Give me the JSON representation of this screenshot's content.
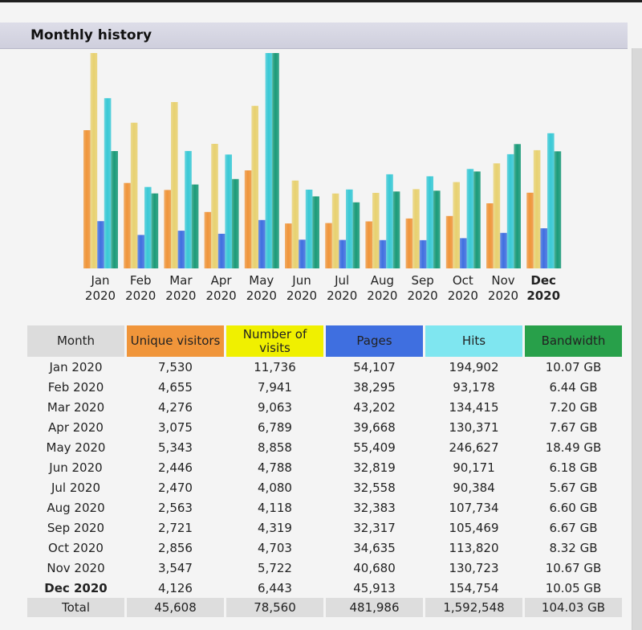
{
  "header": {
    "title": "Monthly history"
  },
  "colors": {
    "unique": "#f0953a",
    "visits": "#e8d170",
    "pages": "#3f6fe0",
    "hits": "#39c9d6",
    "bandwidth": "#1a9a78"
  },
  "table": {
    "headers": {
      "month": "Month",
      "unique": "Unique visitors",
      "visits": "Number of visits",
      "pages": "Pages",
      "hits": "Hits",
      "bandwidth": "Bandwidth"
    },
    "rows": [
      {
        "month": "Jan 2020",
        "unique": "7,530",
        "visits": "11,736",
        "pages": "54,107",
        "hits": "194,902",
        "bandwidth": "10.07 GB"
      },
      {
        "month": "Feb 2020",
        "unique": "4,655",
        "visits": "7,941",
        "pages": "38,295",
        "hits": "93,178",
        "bandwidth": "6.44 GB"
      },
      {
        "month": "Mar 2020",
        "unique": "4,276",
        "visits": "9,063",
        "pages": "43,202",
        "hits": "134,415",
        "bandwidth": "7.20 GB"
      },
      {
        "month": "Apr 2020",
        "unique": "3,075",
        "visits": "6,789",
        "pages": "39,668",
        "hits": "130,371",
        "bandwidth": "7.67 GB"
      },
      {
        "month": "May 2020",
        "unique": "5,343",
        "visits": "8,858",
        "pages": "55,409",
        "hits": "246,627",
        "bandwidth": "18.49 GB"
      },
      {
        "month": "Jun 2020",
        "unique": "2,446",
        "visits": "4,788",
        "pages": "32,819",
        "hits": "90,171",
        "bandwidth": "6.18 GB"
      },
      {
        "month": "Jul 2020",
        "unique": "2,470",
        "visits": "4,080",
        "pages": "32,558",
        "hits": "90,384",
        "bandwidth": "5.67 GB"
      },
      {
        "month": "Aug 2020",
        "unique": "2,563",
        "visits": "4,118",
        "pages": "32,383",
        "hits": "107,734",
        "bandwidth": "6.60 GB"
      },
      {
        "month": "Sep 2020",
        "unique": "2,721",
        "visits": "4,319",
        "pages": "32,317",
        "hits": "105,469",
        "bandwidth": "6.67 GB"
      },
      {
        "month": "Oct 2020",
        "unique": "2,856",
        "visits": "4,703",
        "pages": "34,635",
        "hits": "113,820",
        "bandwidth": "8.32 GB"
      },
      {
        "month": "Nov 2020",
        "unique": "3,547",
        "visits": "5,722",
        "pages": "40,680",
        "hits": "130,723",
        "bandwidth": "10.67 GB"
      },
      {
        "month": "Dec 2020",
        "unique": "4,126",
        "visits": "6,443",
        "pages": "45,913",
        "hits": "154,754",
        "bandwidth": "10.05 GB"
      }
    ],
    "total": {
      "month": "Total",
      "unique": "45,608",
      "visits": "78,560",
      "pages": "481,986",
      "hits": "1,592,548",
      "bandwidth": "104.03 GB"
    }
  },
  "chart_data": {
    "type": "bar",
    "title": "Monthly history",
    "categories": [
      "Jan 2020",
      "Feb 2020",
      "Mar 2020",
      "Apr 2020",
      "May 2020",
      "Jun 2020",
      "Jul 2020",
      "Aug 2020",
      "Sep 2020",
      "Oct 2020",
      "Nov 2020",
      "Dec 2020"
    ],
    "tick_labels": [
      {
        "month": "Jan",
        "year": "2020"
      },
      {
        "month": "Feb",
        "year": "2020"
      },
      {
        "month": "Mar",
        "year": "2020"
      },
      {
        "month": "Apr",
        "year": "2020"
      },
      {
        "month": "May",
        "year": "2020"
      },
      {
        "month": "Jun",
        "year": "2020"
      },
      {
        "month": "Jul",
        "year": "2020"
      },
      {
        "month": "Aug",
        "year": "2020"
      },
      {
        "month": "Sep",
        "year": "2020"
      },
      {
        "month": "Oct",
        "year": "2020"
      },
      {
        "month": "Nov",
        "year": "2020"
      },
      {
        "month": "Dec",
        "year": "2020"
      }
    ],
    "highlight_index": 11,
    "series": [
      {
        "name": "Unique visitors",
        "key": "unique",
        "values": [
          7530,
          4655,
          4276,
          3075,
          5343,
          2446,
          2470,
          2563,
          2721,
          2856,
          3547,
          4126
        ]
      },
      {
        "name": "Number of visits",
        "key": "visits",
        "values": [
          11736,
          7941,
          9063,
          6789,
          8858,
          4788,
          4080,
          4118,
          4319,
          4703,
          5722,
          6443
        ]
      },
      {
        "name": "Pages",
        "key": "pages",
        "values": [
          54107,
          38295,
          43202,
          39668,
          55409,
          32819,
          32558,
          32383,
          32317,
          34635,
          40680,
          45913
        ]
      },
      {
        "name": "Hits",
        "key": "hits",
        "values": [
          194902,
          93178,
          134415,
          130371,
          246627,
          90171,
          90384,
          107734,
          105469,
          113820,
          130723,
          154754
        ]
      },
      {
        "name": "Bandwidth",
        "key": "bandwidth",
        "unit": "GB",
        "values": [
          10.07,
          6.44,
          7.2,
          7.67,
          18.49,
          6.18,
          5.67,
          6.6,
          6.67,
          8.32,
          10.67,
          10.05
        ]
      }
    ]
  }
}
